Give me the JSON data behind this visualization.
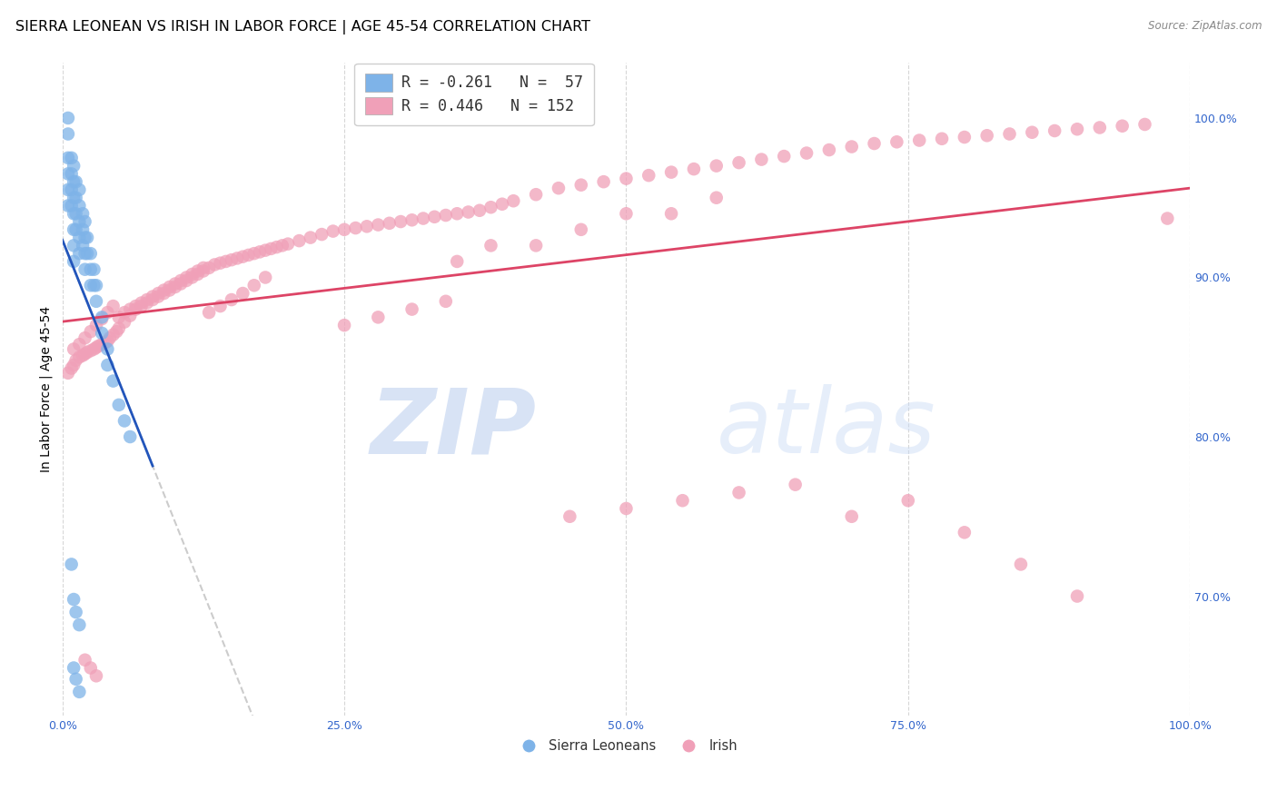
{
  "title": "SIERRA LEONEAN VS IRISH IN LABOR FORCE | AGE 45-54 CORRELATION CHART",
  "source": "Source: ZipAtlas.com",
  "ylabel_left": "In Labor Force | Age 45-54",
  "xticklabels": [
    "0.0%",
    "25.0%",
    "50.0%",
    "75.0%",
    "100.0%"
  ],
  "xticks": [
    0.0,
    0.25,
    0.5,
    0.75,
    1.0
  ],
  "yticklabels_right": [
    "70.0%",
    "80.0%",
    "90.0%",
    "100.0%"
  ],
  "yticks_right": [
    0.7,
    0.8,
    0.9,
    1.0
  ],
  "xlim": [
    0.0,
    1.0
  ],
  "ylim": [
    0.625,
    1.035
  ],
  "legend_blue_r": "R = -0.261",
  "legend_blue_n": "N =  57",
  "legend_pink_r": "R = 0.446",
  "legend_pink_n": "N = 152",
  "blue_color": "#7eb3e8",
  "blue_line_color": "#2255bb",
  "pink_color": "#f0a0b8",
  "pink_line_color": "#dd4466",
  "watermark_zip": "ZIP",
  "watermark_atlas": "atlas",
  "watermark_color": "#d0dff5",
  "grid_color": "#cccccc",
  "title_fontsize": 11.5,
  "axis_label_fontsize": 10,
  "tick_fontsize": 9,
  "legend_fontsize": 12,
  "blue_scatter_x": [
    0.005,
    0.005,
    0.005,
    0.005,
    0.005,
    0.008,
    0.008,
    0.008,
    0.008,
    0.01,
    0.01,
    0.01,
    0.01,
    0.01,
    0.01,
    0.01,
    0.012,
    0.012,
    0.012,
    0.012,
    0.015,
    0.015,
    0.015,
    0.015,
    0.015,
    0.018,
    0.018,
    0.018,
    0.02,
    0.02,
    0.02,
    0.02,
    0.022,
    0.022,
    0.025,
    0.025,
    0.025,
    0.028,
    0.028,
    0.03,
    0.03,
    0.035,
    0.035,
    0.04,
    0.04,
    0.045,
    0.05,
    0.055,
    0.06,
    0.01,
    0.012,
    0.015,
    0.005,
    0.008,
    0.01,
    0.012,
    0.015
  ],
  "blue_scatter_y": [
    0.99,
    0.975,
    0.965,
    0.955,
    0.945,
    0.975,
    0.965,
    0.955,
    0.945,
    0.97,
    0.96,
    0.95,
    0.94,
    0.93,
    0.92,
    0.91,
    0.96,
    0.95,
    0.94,
    0.93,
    0.955,
    0.945,
    0.935,
    0.925,
    0.915,
    0.94,
    0.93,
    0.92,
    0.935,
    0.925,
    0.915,
    0.905,
    0.925,
    0.915,
    0.915,
    0.905,
    0.895,
    0.905,
    0.895,
    0.895,
    0.885,
    0.875,
    0.865,
    0.855,
    0.845,
    0.835,
    0.82,
    0.81,
    0.8,
    0.698,
    0.69,
    0.682,
    1.0,
    0.72,
    0.655,
    0.648,
    0.64
  ],
  "pink_scatter_x": [
    0.005,
    0.008,
    0.01,
    0.012,
    0.015,
    0.018,
    0.02,
    0.022,
    0.025,
    0.028,
    0.03,
    0.032,
    0.035,
    0.038,
    0.04,
    0.042,
    0.045,
    0.048,
    0.05,
    0.055,
    0.06,
    0.065,
    0.07,
    0.075,
    0.08,
    0.085,
    0.09,
    0.095,
    0.1,
    0.105,
    0.11,
    0.115,
    0.12,
    0.125,
    0.13,
    0.135,
    0.14,
    0.145,
    0.15,
    0.155,
    0.16,
    0.165,
    0.17,
    0.175,
    0.18,
    0.185,
    0.19,
    0.195,
    0.2,
    0.21,
    0.22,
    0.23,
    0.24,
    0.25,
    0.26,
    0.27,
    0.28,
    0.29,
    0.3,
    0.31,
    0.32,
    0.33,
    0.34,
    0.35,
    0.36,
    0.37,
    0.38,
    0.39,
    0.4,
    0.42,
    0.44,
    0.46,
    0.48,
    0.5,
    0.52,
    0.54,
    0.56,
    0.58,
    0.6,
    0.62,
    0.64,
    0.66,
    0.68,
    0.7,
    0.72,
    0.74,
    0.76,
    0.78,
    0.8,
    0.82,
    0.84,
    0.86,
    0.88,
    0.9,
    0.92,
    0.94,
    0.96,
    0.98,
    0.01,
    0.015,
    0.02,
    0.025,
    0.03,
    0.035,
    0.04,
    0.045,
    0.05,
    0.055,
    0.06,
    0.065,
    0.07,
    0.075,
    0.08,
    0.085,
    0.09,
    0.095,
    0.1,
    0.105,
    0.11,
    0.115,
    0.12,
    0.125,
    0.13,
    0.14,
    0.15,
    0.16,
    0.17,
    0.18,
    0.35,
    0.38,
    0.42,
    0.46,
    0.5,
    0.54,
    0.58,
    0.25,
    0.28,
    0.31,
    0.34,
    0.45,
    0.5,
    0.55,
    0.6,
    0.65,
    0.7,
    0.75,
    0.8,
    0.85,
    0.9,
    0.02,
    0.025,
    0.03
  ],
  "pink_scatter_y": [
    0.84,
    0.843,
    0.845,
    0.848,
    0.85,
    0.851,
    0.852,
    0.853,
    0.854,
    0.855,
    0.856,
    0.857,
    0.858,
    0.859,
    0.86,
    0.862,
    0.864,
    0.866,
    0.868,
    0.872,
    0.876,
    0.88,
    0.882,
    0.884,
    0.886,
    0.888,
    0.89,
    0.892,
    0.894,
    0.896,
    0.898,
    0.9,
    0.902,
    0.904,
    0.906,
    0.908,
    0.909,
    0.91,
    0.911,
    0.912,
    0.913,
    0.914,
    0.915,
    0.916,
    0.917,
    0.918,
    0.919,
    0.92,
    0.921,
    0.923,
    0.925,
    0.927,
    0.929,
    0.93,
    0.931,
    0.932,
    0.933,
    0.934,
    0.935,
    0.936,
    0.937,
    0.938,
    0.939,
    0.94,
    0.941,
    0.942,
    0.944,
    0.946,
    0.948,
    0.952,
    0.956,
    0.958,
    0.96,
    0.962,
    0.964,
    0.966,
    0.968,
    0.97,
    0.972,
    0.974,
    0.976,
    0.978,
    0.98,
    0.982,
    0.984,
    0.985,
    0.986,
    0.987,
    0.988,
    0.989,
    0.99,
    0.991,
    0.992,
    0.993,
    0.994,
    0.995,
    0.996,
    0.937,
    0.855,
    0.858,
    0.862,
    0.866,
    0.87,
    0.874,
    0.878,
    0.882,
    0.875,
    0.878,
    0.88,
    0.882,
    0.884,
    0.886,
    0.888,
    0.89,
    0.892,
    0.894,
    0.896,
    0.898,
    0.9,
    0.902,
    0.904,
    0.906,
    0.878,
    0.882,
    0.886,
    0.89,
    0.895,
    0.9,
    0.91,
    0.92,
    0.92,
    0.93,
    0.94,
    0.94,
    0.95,
    0.87,
    0.875,
    0.88,
    0.885,
    0.75,
    0.755,
    0.76,
    0.765,
    0.77,
    0.75,
    0.76,
    0.74,
    0.72,
    0.7,
    0.66,
    0.655,
    0.65
  ]
}
